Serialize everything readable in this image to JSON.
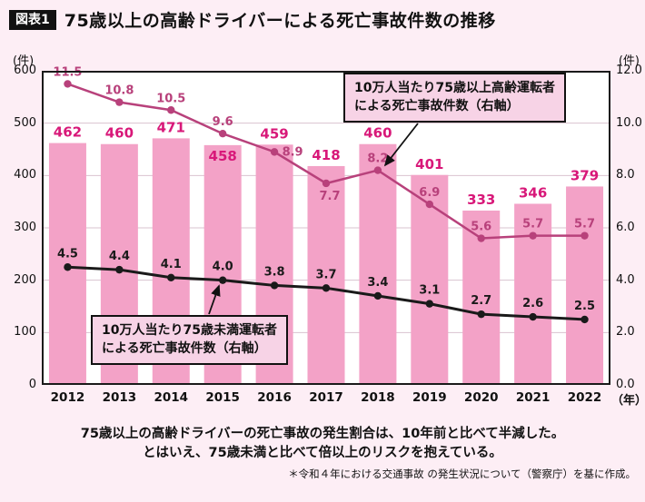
{
  "header": {
    "badge": "図表1",
    "title": "75歳以上の高齢ドライバーによる死亡事故件数の推移"
  },
  "colors": {
    "background": "#FDEEF5",
    "plot_background": "#FFFFFF",
    "gridline": "#D9C3CF",
    "plot_border": "#1A1A1A",
    "bar": "#F3A2C7",
    "bar_label": "#D81879",
    "line_75plus": "#B8417B",
    "line_under75": "#1A1A1A",
    "callout_bg": "#F7D3E6"
  },
  "chart_data": {
    "type": "bar+line",
    "title": "75歳以上の高齢ドライバーによる死亡事故件数の推移",
    "categories": [
      "2012",
      "2013",
      "2014",
      "2015",
      "2016",
      "2017",
      "2018",
      "2019",
      "2020",
      "2021",
      "2022"
    ],
    "x_unit": "（年）",
    "bars": {
      "values": [
        462,
        460,
        471,
        458,
        459,
        418,
        460,
        401,
        333,
        346,
        379
      ],
      "axis": "left",
      "color": "#F3A2C7",
      "label_color": "#D81879"
    },
    "series": [
      {
        "name": "10万人当たり75歳以上高齢運転者による死亡事故件数（右軸）",
        "values": [
          11.5,
          10.8,
          10.5,
          9.6,
          8.9,
          7.7,
          8.2,
          6.9,
          5.6,
          5.7,
          5.7
        ],
        "labels": [
          "11.5",
          "10.8",
          "10.5",
          "9.6",
          "8.9",
          "7.7",
          "8.2",
          "6.9",
          "5.6",
          "5.7",
          "5.7"
        ],
        "axis": "right",
        "color": "#B8417B"
      },
      {
        "name": "10万人当たり75歳未満運転者による死亡事故件数（右軸）",
        "values": [
          4.5,
          4.4,
          4.1,
          4.0,
          3.8,
          3.7,
          3.4,
          3.1,
          2.7,
          2.6,
          2.5
        ],
        "labels": [
          "4.5",
          "4.4",
          "4.1",
          "4.0",
          "3.8",
          "3.7",
          "3.4",
          "3.1",
          "2.7",
          "2.6",
          "2.5"
        ],
        "axis": "right",
        "color": "#1A1A1A"
      }
    ],
    "left_axis": {
      "unit": "(件)",
      "min": 0,
      "max": 600,
      "ticks": [
        0,
        100,
        200,
        300,
        400,
        500,
        600
      ],
      "tick_labels": [
        "0",
        "100",
        "200",
        "300",
        "400",
        "500",
        "600"
      ]
    },
    "right_axis": {
      "unit": "(件)",
      "min": 0,
      "max": 12,
      "ticks": [
        0,
        2,
        4,
        6,
        8,
        10,
        12
      ],
      "tick_labels": [
        "0.0",
        "2.0",
        "4.0",
        "6.0",
        "8.0",
        "10.0",
        "12.0"
      ]
    },
    "grid": "horizontal",
    "legend_position": "callouts-inside-plot"
  },
  "annotations": [
    {
      "target_series": "75歳以上",
      "lines": [
        "10万人当たり75歳以上高齢運転者",
        "による死亡事故件数（右軸）"
      ]
    },
    {
      "target_series": "75歳未満",
      "lines": [
        "10万人当たり75歳未満運転者",
        "による死亡事故件数（右軸）"
      ]
    }
  ],
  "footer": {
    "line1": "75歳以上の高齢ドライバーの死亡事故の発生割合は、10年前と比べて半減した。",
    "line2": "とはいえ、75歳未満と比べて倍以上のリスクを抱えている。",
    "source": "＊令和４年における交通事故 の発生状況について（警察庁）を基に作成。"
  }
}
